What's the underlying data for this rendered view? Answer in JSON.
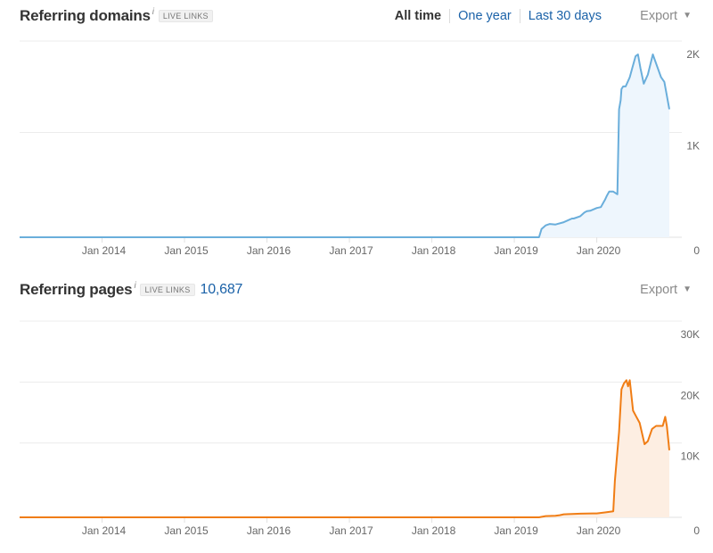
{
  "panels": [
    {
      "title": "Referring domains",
      "info": "i",
      "badge": "LIVE LINKS",
      "range_tabs": [
        "All time",
        "One year",
        "Last 30 days"
      ],
      "export_label": "Export"
    },
    {
      "title": "Referring pages",
      "info": "i",
      "badge": "LIVE LINKS",
      "total": "10,687",
      "export_label": "Export"
    }
  ],
  "chart_data": [
    {
      "type": "area",
      "series": [
        {
          "color": "#6aaedb",
          "fill": "#eef6fd",
          "x": [
            2013.0,
            2019.3,
            2019.33,
            2019.38,
            2019.43,
            2019.5,
            2019.6,
            2019.7,
            2019.72,
            2019.8,
            2019.85,
            2019.88,
            2019.92,
            2020.0,
            2020.05,
            2020.08,
            2020.1,
            2020.12,
            2020.15,
            2020.2,
            2020.25,
            2020.27,
            2020.28,
            2020.29,
            2020.3,
            2020.32,
            2020.35,
            2020.4,
            2020.43,
            2020.47,
            2020.5,
            2020.53,
            2020.57,
            2020.62,
            2020.68,
            2020.72,
            2020.78,
            2020.82,
            2020.85,
            2020.88
          ],
          "values": [
            0,
            0,
            90,
            130,
            145,
            140,
            165,
            205,
            205,
            230,
            270,
            285,
            290,
            320,
            330,
            380,
            410,
            450,
            500,
            500,
            470,
            1400,
            1450,
            1500,
            1620,
            1650,
            1650,
            1750,
            1850,
            1980,
            2000,
            1850,
            1680,
            1780,
            2000,
            1900,
            1750,
            1700,
            1550,
            1400
          ]
        }
      ],
      "y_ticks": [
        "2K",
        "1K",
        "0"
      ],
      "ylim": [
        0,
        2000
      ],
      "x_ticks": [
        "Jan 2014",
        "Jan 2015",
        "Jan 2016",
        "Jan 2017",
        "Jan 2018",
        "Jan 2019",
        "Jan 2020"
      ],
      "xlim": [
        2013.0,
        2020.88
      ],
      "grid": true
    },
    {
      "type": "area",
      "series": [
        {
          "color": "#f07d15",
          "fill": "#fdeee2",
          "x": [
            2013.0,
            2019.3,
            2019.38,
            2019.5,
            2019.55,
            2019.6,
            2019.7,
            2019.8,
            2019.95,
            2020.0,
            2020.1,
            2020.2,
            2020.22,
            2020.27,
            2020.3,
            2020.33,
            2020.36,
            2020.38,
            2020.4,
            2020.44,
            2020.48,
            2020.52,
            2020.58,
            2020.62,
            2020.67,
            2020.72,
            2020.76,
            2020.8,
            2020.83,
            2020.85,
            2020.88
          ],
          "values": [
            0,
            0,
            200,
            250,
            350,
            500,
            550,
            600,
            650,
            650,
            800,
            1000,
            6000,
            14000,
            21000,
            22000,
            22500,
            21500,
            22500,
            17500,
            16500,
            15500,
            12000,
            12500,
            14500,
            15000,
            15000,
            15000,
            16500,
            15000,
            11000
          ]
        }
      ],
      "y_ticks": [
        "30K",
        "20K",
        "10K",
        "0"
      ],
      "ylim": [
        0,
        30000
      ],
      "x_ticks": [
        "Jan 2014",
        "Jan 2015",
        "Jan 2016",
        "Jan 2017",
        "Jan 2018",
        "Jan 2019",
        "Jan 2020"
      ],
      "xlim": [
        2013.0,
        2020.88
      ],
      "grid": true
    }
  ]
}
